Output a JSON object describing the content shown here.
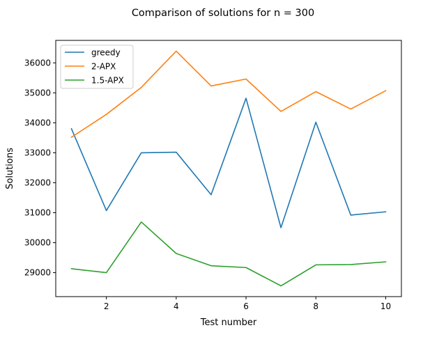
{
  "chart_data": {
    "type": "line",
    "title": "Comparison of solutions for n = 300",
    "xlabel": "Test number",
    "ylabel": "Solutions",
    "x": [
      1,
      2,
      3,
      4,
      5,
      6,
      7,
      8,
      9,
      10
    ],
    "xlim": [
      0.55,
      10.45
    ],
    "ylim": [
      28200,
      36750
    ],
    "xticks": [
      2,
      4,
      6,
      8,
      10
    ],
    "xtick_labels": [
      "2",
      "4",
      "6",
      "8",
      "10"
    ],
    "yticks": [
      29000,
      30000,
      31000,
      32000,
      33000,
      34000,
      35000,
      36000
    ],
    "ytick_labels": [
      "29000",
      "30000",
      "31000",
      "32000",
      "33000",
      "34000",
      "35000",
      "36000"
    ],
    "grid": false,
    "legend_position": "top-left",
    "series": [
      {
        "name": "greedy",
        "color": "#1f77b4",
        "values": [
          33800,
          31070,
          33000,
          33020,
          31600,
          34820,
          30500,
          34020,
          30920,
          31030
        ]
      },
      {
        "name": "2-APX",
        "color": "#ff7f0e",
        "values": [
          33520,
          34280,
          35180,
          36390,
          35230,
          35460,
          34380,
          35040,
          34460,
          35070
        ]
      },
      {
        "name": "1.5-APX",
        "color": "#2ca02c",
        "values": [
          29130,
          29000,
          30690,
          29640,
          29230,
          29170,
          28560,
          29260,
          29270,
          29360
        ]
      }
    ]
  }
}
